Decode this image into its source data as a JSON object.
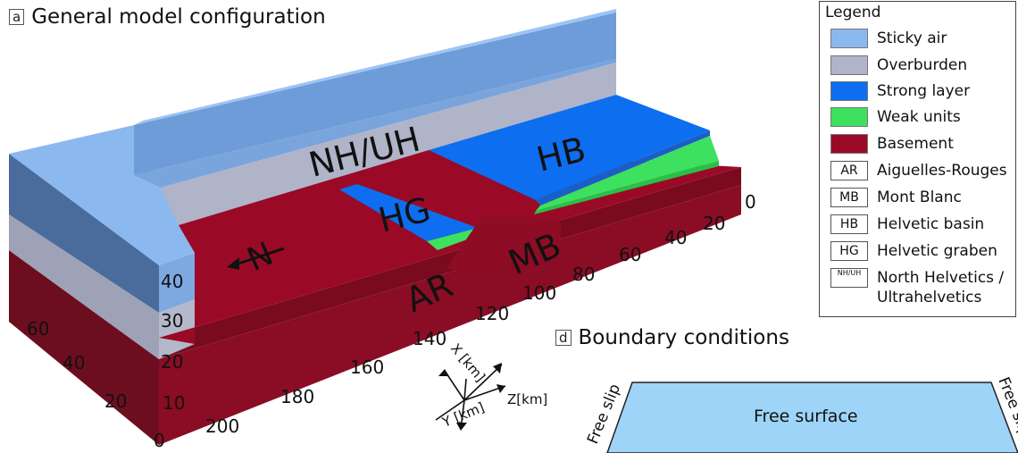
{
  "panel_a": {
    "tag": "a",
    "title": "General model configuration"
  },
  "panel_d": {
    "tag": "d",
    "title": "Boundary conditions"
  },
  "colors": {
    "sticky_air": "#8cb8f0",
    "overburden": "#b0b4c8",
    "strong_layer": "#0d6ef0",
    "weak_units": "#3ee060",
    "basement": "#9a0a26",
    "free_surface": "#9ed4f8"
  },
  "model_labels": {
    "nh_uh": "NH/UH",
    "hb": "HB",
    "hg": "HG",
    "mb": "MB",
    "ar": "AR",
    "north": "N"
  },
  "axis_x_ticks": [
    "0",
    "20",
    "40",
    "60",
    "80",
    "100",
    "120",
    "140",
    "160",
    "180",
    "200"
  ],
  "axis_y_ticks": [
    "60",
    "40",
    "20",
    "0"
  ],
  "axis_z_ticks": [
    "10",
    "20",
    "30",
    "40"
  ],
  "triad": {
    "x": "X [km]",
    "y": "Y [km]",
    "z": "Z[km]"
  },
  "legend": {
    "title": "Legend",
    "items": [
      {
        "type": "swatch",
        "color": "#8cb8f0",
        "label": "Sticky air"
      },
      {
        "type": "swatch",
        "color": "#b0b4c8",
        "label": "Overburden"
      },
      {
        "type": "swatch",
        "color": "#0d6ef0",
        "label": "Strong layer"
      },
      {
        "type": "swatch",
        "color": "#3ee060",
        "label": "Weak units"
      },
      {
        "type": "swatch",
        "color": "#9a0a26",
        "label": "Basement"
      },
      {
        "type": "box",
        "code": "AR",
        "label": "Aiguelles-Rouges"
      },
      {
        "type": "box",
        "code": "MB",
        "label": "Mont Blanc"
      },
      {
        "type": "box",
        "code": "HB",
        "label": "Helvetic basin"
      },
      {
        "type": "box",
        "code": "HG",
        "label": "Helvetic graben"
      },
      {
        "type": "box",
        "code": "NH/UH",
        "label": "North Helvetics /",
        "label2": "Ultrahelvetics"
      }
    ]
  },
  "boundary": {
    "top": "Free surface",
    "left": "Free slip",
    "right": "Free slip"
  }
}
